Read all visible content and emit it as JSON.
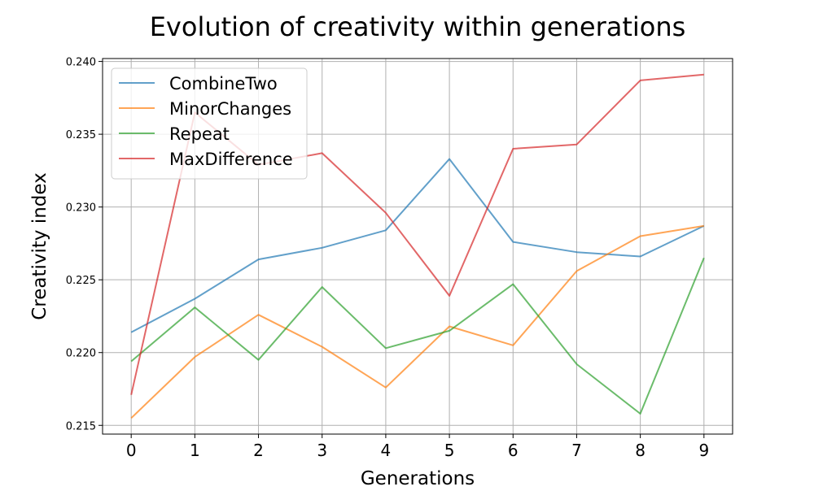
{
  "chart_data": {
    "type": "line",
    "title": "Evolution of creativity within generations",
    "xlabel": "Generations",
    "ylabel": "Creativity index",
    "x": [
      0,
      1,
      2,
      3,
      4,
      5,
      6,
      7,
      8,
      9
    ],
    "x_ticks": [
      "0",
      "1",
      "2",
      "3",
      "4",
      "5",
      "6",
      "7",
      "8",
      "9"
    ],
    "xlim": [
      -0.45,
      9.45
    ],
    "ylim": [
      0.2144,
      0.2402
    ],
    "y_ticks": [
      "0.215",
      "0.220",
      "0.225",
      "0.230",
      "0.235",
      "0.240"
    ],
    "y_tick_values": [
      0.215,
      0.22,
      0.225,
      0.23,
      0.235,
      0.24
    ],
    "grid": true,
    "legend_position": "upper-left",
    "series": [
      {
        "name": "CombineTwo",
        "color": "#1f77b4",
        "values": [
          0.2214,
          0.2237,
          0.2264,
          0.2272,
          0.2284,
          0.2333,
          0.2276,
          0.2269,
          0.2266,
          0.2287
        ]
      },
      {
        "name": "MinorChanges",
        "color": "#ff7f0e",
        "values": [
          0.2155,
          0.2197,
          0.2226,
          0.2204,
          0.2176,
          0.2218,
          0.2205,
          0.2256,
          0.228,
          0.2287
        ]
      },
      {
        "name": "Repeat",
        "color": "#2ca02c",
        "values": [
          0.2194,
          0.2231,
          0.2195,
          0.2245,
          0.2203,
          0.2215,
          0.2247,
          0.2192,
          0.2158,
          0.2265
        ]
      },
      {
        "name": "MaxDifference",
        "color": "#d62728",
        "values": [
          0.2171,
          0.2365,
          0.2329,
          0.2337,
          0.2296,
          0.2239,
          0.234,
          0.2343,
          0.2387,
          0.2391
        ]
      }
    ]
  }
}
